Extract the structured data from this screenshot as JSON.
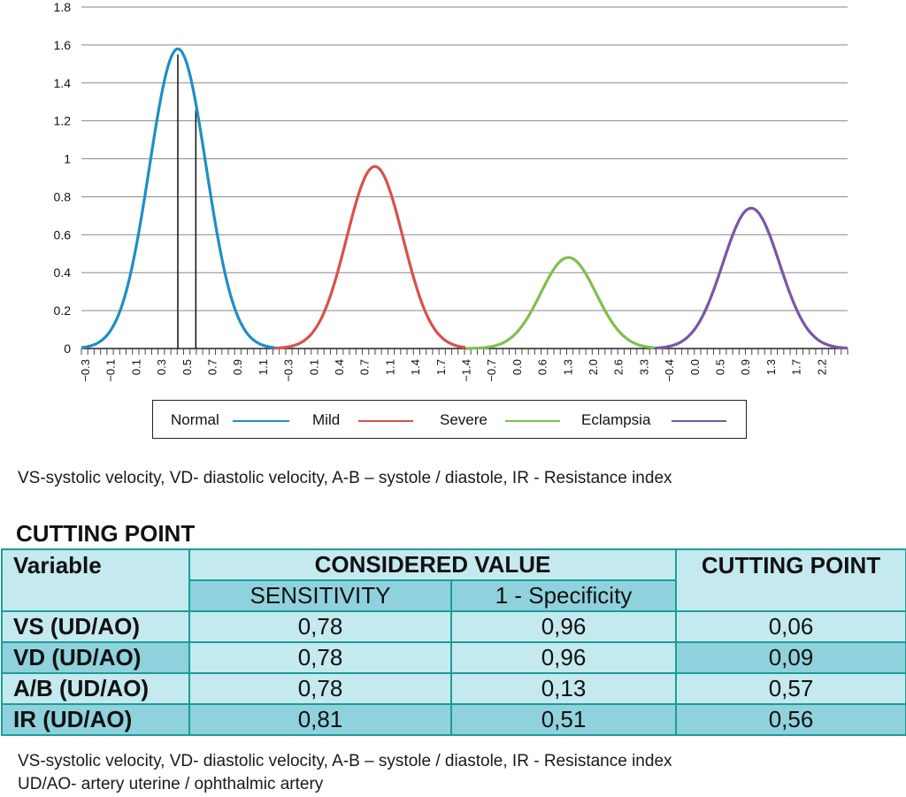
{
  "chart_data": {
    "type": "line",
    "y_ticks": [
      "1.8",
      "1.6",
      "1.4",
      "1.2",
      "1",
      "0.8",
      "0.6",
      "0.4",
      "0.2",
      "0"
    ],
    "ylim": [
      0,
      1.8
    ],
    "grid": true,
    "legend_position": "bottom",
    "x_tick_labels": [
      "−0.3",
      "−0.1",
      "0.1",
      "0.3",
      "0.5",
      "0.7",
      "0.9",
      "1.1",
      "−0.3",
      "0.1",
      "0.4",
      "0.7",
      "1.1",
      "1.4",
      "1.7",
      "−1.4",
      "−0.7",
      "0.0",
      "0.6",
      "1.3",
      "2.0",
      "2.6",
      "3.3",
      "−0.4",
      "0.0",
      "0.5",
      "0.9",
      "1.3",
      "1.7",
      "2.2"
    ],
    "series": [
      {
        "name": "Normal",
        "color": "#1f8fc2",
        "peak_x": 0.45,
        "peak_y": 1.58,
        "x_start": -0.3,
        "x_end": 1.2
      },
      {
        "name": "Mild",
        "color": "#d7514e",
        "peak_x": 0.8,
        "peak_y": 0.96,
        "x_start": -0.3,
        "x_end": 1.8
      },
      {
        "name": "Severe",
        "color": "#7fbf4d",
        "peak_x": 1.2,
        "peak_y": 0.48,
        "x_start": -1.4,
        "x_end": 3.4
      },
      {
        "name": "Eclampsia",
        "color": "#7a56a4",
        "peak_x": 1.0,
        "peak_y": 0.74,
        "x_start": -0.4,
        "x_end": 2.4
      }
    ],
    "markers": [
      {
        "x": 0.45,
        "y_top": 1.55
      },
      {
        "x": 0.59,
        "y_top": 1.26
      }
    ]
  },
  "captions": {
    "chart_caption": "VS-systolic velocity, VD- diastolic velocity, A-B – systole / diastole, IR - Resistance index",
    "table_caption_1": "VS-systolic velocity, VD- diastolic velocity, A-B – systole / diastole, IR - Resistance index",
    "table_caption_2": "UD/AO- artery uterine / ophthalmic artery"
  },
  "table": {
    "title": "CUTTING POINT",
    "head_variable": "Variable",
    "head_considered": "CONSIDERED VALUE",
    "head_cutting": "CUTTING POINT",
    "sub_sensitivity": "SENSITIVITY",
    "sub_specificity": "1 - Specificity",
    "rows": [
      {
        "variable": "VS (UD/AO)",
        "sensitivity": "0,78",
        "specificity": "0,96",
        "cutting": "0,06"
      },
      {
        "variable": "VD (UD/AO)",
        "sensitivity": "0,78",
        "specificity": "0,96",
        "cutting": "0,09"
      },
      {
        "variable": "A/B (UD/AO)",
        "sensitivity": "0,78",
        "specificity": "0,13",
        "cutting": "0,57"
      },
      {
        "variable": "IR (UD/AO)",
        "sensitivity": "0,81",
        "specificity": "0,51",
        "cutting": "0,56"
      }
    ]
  }
}
